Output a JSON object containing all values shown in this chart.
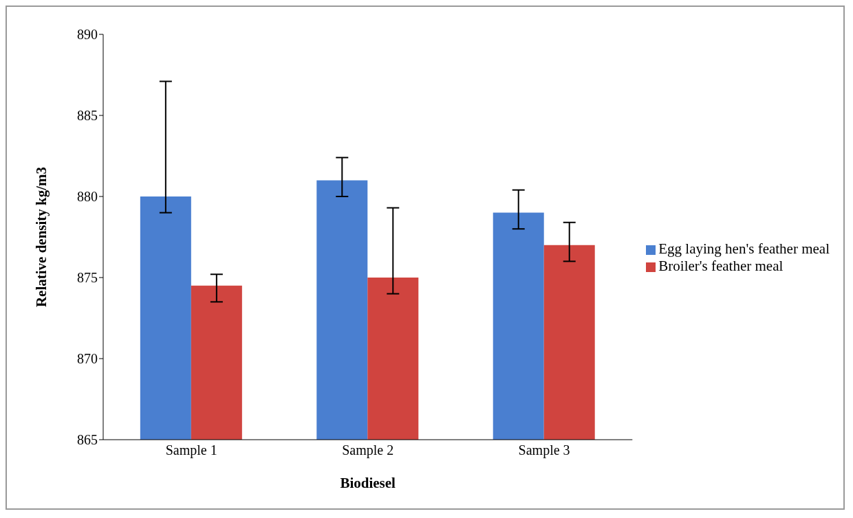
{
  "chart_data": {
    "type": "bar",
    "xlabel": "Biodiesel",
    "ylabel": "Relative density kg/m3",
    "categories": [
      "Sample 1",
      "Sample 2",
      "Sample 3"
    ],
    "series": [
      {
        "name": "Egg laying hen's feather meal",
        "color": "#4a7fd0",
        "values": [
          880,
          881,
          879
        ],
        "errors": [
          [
            879,
            887.1
          ],
          [
            880,
            882.4
          ],
          [
            878,
            880.4
          ]
        ]
      },
      {
        "name": "Broiler's feather meal",
        "color": "#d0443f",
        "values": [
          874.5,
          875,
          877
        ],
        "errors": [
          [
            873.5,
            875.2
          ],
          [
            874,
            879.3
          ],
          [
            876,
            878.4
          ]
        ]
      }
    ],
    "ylim": [
      865,
      890
    ],
    "yticks": [
      865,
      870,
      875,
      880,
      885,
      890
    ],
    "grid": false,
    "legend": "right"
  }
}
